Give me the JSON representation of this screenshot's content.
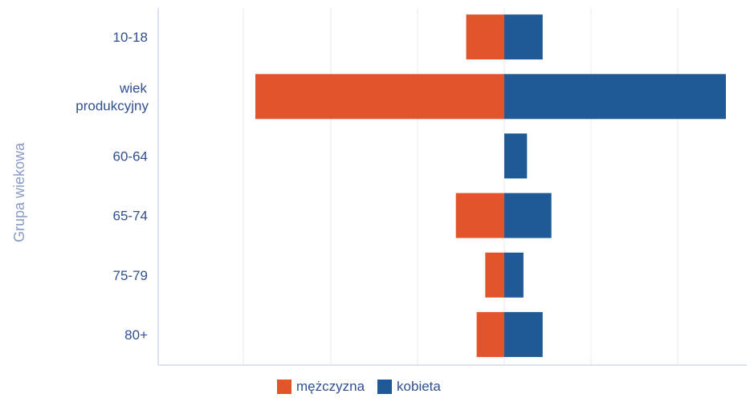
{
  "chart_data": {
    "type": "bar",
    "orientation": "horizontal",
    "stacked": "diverging",
    "ylabel": "Grupa wiekowa",
    "xlabel": "",
    "categories": [
      "10-18",
      "wiek produkcyjny",
      "60-64",
      "65-74",
      "75-79",
      "80+"
    ],
    "category_lines": [
      [
        "10-18"
      ],
      [
        "wiek",
        "produkcyjny"
      ],
      [
        "60-64"
      ],
      [
        "65-74"
      ],
      [
        "75-79"
      ],
      [
        "80+"
      ]
    ],
    "series": [
      {
        "name": "mężczyzna",
        "color": "#e2542c",
        "values": [
          -22,
          -144,
          0,
          -28,
          -11,
          -16
        ]
      },
      {
        "name": "kobieta",
        "color": "#1f5a96",
        "values": [
          22,
          127,
          13,
          27,
          11,
          22
        ]
      }
    ],
    "xlim": [
      -150,
      130
    ],
    "grid": true,
    "legend_position": "bottom"
  }
}
